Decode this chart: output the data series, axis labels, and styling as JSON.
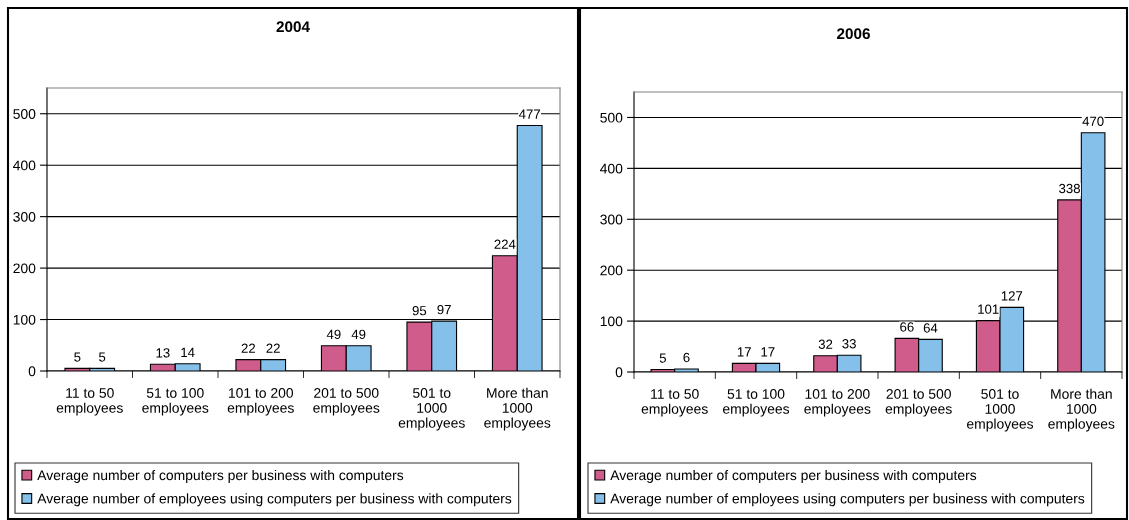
{
  "chart_data": [
    {
      "type": "bar",
      "title": "2004",
      "categories": [
        "11 to 50\nemployees",
        "51 to 100\nemployees",
        "101 to 200\nemployees",
        "201 to 500\nemployees",
        "501 to\n1000\nemployees",
        "More than\n1000\nemployees"
      ],
      "series": [
        {
          "name": "Average number of computers per business with computers",
          "color": "#d05c8c",
          "values": [
            5,
            13,
            22,
            49,
            95,
            224
          ]
        },
        {
          "name": "Average number of employees using computers per business with computers",
          "color": "#84c0ea",
          "values": [
            5,
            14,
            22,
            49,
            97,
            477
          ]
        }
      ],
      "ylim": [
        0,
        550
      ],
      "yticks": [
        0,
        100,
        200,
        300,
        400,
        500
      ],
      "grid": "y",
      "legend": "bottom",
      "data_labels": true
    },
    {
      "type": "bar",
      "title": "2006",
      "categories": [
        "11 to 50\nemployees",
        "51 to 100\nemployees",
        "101 to 200\nemployees",
        "201 to 500\nemployees",
        "501 to\n1000\nemployees",
        "More than\n1000\nemployees"
      ],
      "series": [
        {
          "name": "Average number of computers per business with computers",
          "color": "#d05c8c",
          "values": [
            5,
            17,
            32,
            66,
            101,
            338
          ]
        },
        {
          "name": "Average number of employees using computers per business with computers",
          "color": "#84c0ea",
          "values": [
            6,
            17,
            33,
            64,
            127,
            470
          ]
        }
      ],
      "ylim": [
        0,
        550
      ],
      "yticks": [
        0,
        100,
        200,
        300,
        400,
        500
      ],
      "grid": "y",
      "legend": "bottom",
      "data_labels": true
    }
  ]
}
